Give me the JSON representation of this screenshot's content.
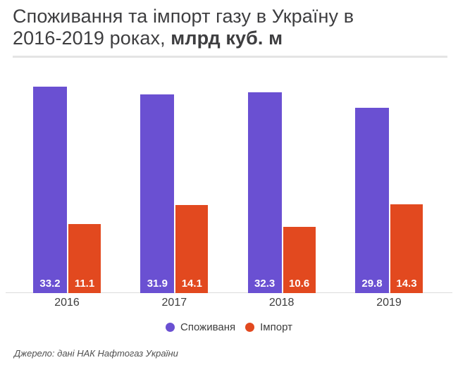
{
  "title": {
    "line1": "Споживання та імпорт газу в Україну в",
    "line2_regular": "2016-2019 роках, ",
    "line2_bold": "млрд куб. м"
  },
  "chart_data": {
    "type": "bar",
    "title": "Споживання та імпорт газу в Україну в 2016-2019 роках, млрд куб. м",
    "categories": [
      "2016",
      "2017",
      "2018",
      "2019"
    ],
    "series": [
      {
        "name": "Споживаня",
        "color": "#6a50d2",
        "values": [
          33.2,
          31.9,
          32.3,
          29.8
        ]
      },
      {
        "name": "Імпорт",
        "color": "#e2491f",
        "values": [
          11.1,
          14.1,
          10.6,
          14.3
        ]
      }
    ],
    "xlabel": "",
    "ylabel": "млрд куб. м",
    "grid": false,
    "y_axis_visible": false,
    "legend_position": "bottom",
    "value_labels": "inside-bottom"
  },
  "legend": [
    {
      "label": "Споживаня",
      "color": "#6a50d2"
    },
    {
      "label": "Імпорт",
      "color": "#e2491f"
    }
  ],
  "source": "Джерело: дані НАК Нафтогаз України",
  "colors": {
    "consumption_bar": "#6a50d2",
    "import_bar": "#e2491f",
    "title_text": "#3e3e40",
    "axis_line": "#dcdcdc",
    "divider": "#e4e4e4",
    "value_label_text": "#ffffff"
  }
}
